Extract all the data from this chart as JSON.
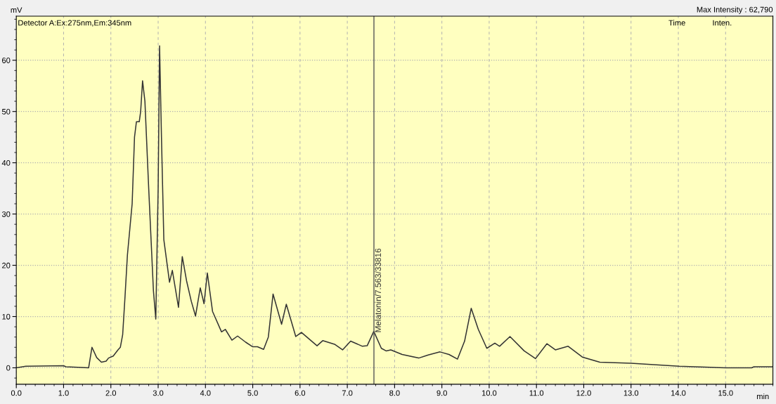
{
  "chart_data": {
    "type": "line",
    "title": "Max Intensity : 62,790",
    "xlabel": "min",
    "ylabel": "mV",
    "annotations": [
      "Detector A:Ex:275nm,Em:345nm",
      "Time",
      "Inten."
    ],
    "xlim": [
      0,
      16.0
    ],
    "ylim": [
      -3.2,
      68.6
    ],
    "xticks": [
      {
        "value": 0,
        "label": "0.0"
      },
      {
        "value": 1,
        "label": "1.0"
      },
      {
        "value": 2,
        "label": "2.0"
      },
      {
        "value": 3,
        "label": "3.0"
      },
      {
        "value": 4,
        "label": "4.0"
      },
      {
        "value": 5,
        "label": "5.0"
      },
      {
        "value": 6,
        "label": "6.0"
      },
      {
        "value": 7,
        "label": "7.0"
      },
      {
        "value": 8,
        "label": "8.0"
      },
      {
        "value": 9,
        "label": "9.0"
      },
      {
        "value": 10,
        "label": "10.0"
      },
      {
        "value": 11,
        "label": "11.0"
      },
      {
        "value": 12,
        "label": "12.0"
      },
      {
        "value": 13,
        "label": "13.0"
      },
      {
        "value": 14,
        "label": "14.0"
      },
      {
        "value": 15,
        "label": "15.0"
      }
    ],
    "yticks": [
      0,
      10,
      20,
      30,
      40,
      50,
      60
    ],
    "grid": true,
    "legend": false,
    "marker": "none",
    "line_style": "solid",
    "ref_lines": [
      {
        "axis": "x",
        "value": 7.563,
        "label": "Melatonin/7.563/33816",
        "color": "#555555"
      }
    ],
    "series": [
      {
        "color": "#333333",
        "x": [
          0.0,
          0.2,
          1.0,
          1.05,
          1.3,
          1.53,
          1.6,
          1.7,
          1.8,
          1.9,
          1.95,
          2.05,
          2.15,
          2.2,
          2.25,
          2.3,
          2.35,
          2.4,
          2.45,
          2.5,
          2.54,
          2.6,
          2.63,
          2.67,
          2.72,
          2.8,
          2.85,
          2.9,
          2.95,
          3.0,
          3.03,
          3.07,
          3.12,
          3.24,
          3.3,
          3.43,
          3.51,
          3.6,
          3.7,
          3.79,
          3.89,
          3.97,
          4.04,
          4.15,
          4.34,
          4.42,
          4.56,
          4.68,
          4.85,
          5.0,
          5.1,
          5.23,
          5.33,
          5.43,
          5.61,
          5.71,
          5.91,
          6.03,
          6.36,
          6.48,
          6.73,
          6.9,
          7.07,
          7.32,
          7.42,
          7.56,
          7.72,
          7.82,
          7.92,
          8.16,
          8.51,
          8.71,
          8.96,
          9.15,
          9.33,
          9.48,
          9.62,
          9.77,
          9.95,
          10.12,
          10.22,
          10.44,
          10.74,
          10.98,
          11.22,
          11.4,
          11.67,
          11.97,
          12.34,
          13.0,
          14.02,
          15.0,
          15.55,
          15.6,
          16.0
        ],
        "values": [
          0.0,
          0.3,
          0.4,
          0.2,
          0.1,
          0.0,
          4.0,
          2.0,
          1.1,
          1.3,
          1.9,
          2.3,
          3.5,
          4.0,
          6.5,
          14,
          22,
          27,
          32,
          45,
          48,
          48,
          50,
          56,
          52,
          35,
          25,
          15,
          9.5,
          35,
          62.8,
          45,
          25,
          16.7,
          19,
          11.8,
          21.7,
          17,
          13,
          10.1,
          15.6,
          12.5,
          18.5,
          11,
          7.0,
          7.5,
          5.4,
          6.2,
          5.0,
          4.1,
          4.1,
          3.6,
          6,
          14.4,
          8.5,
          12.4,
          6.1,
          6.9,
          4.3,
          5.3,
          4.6,
          3.5,
          5.2,
          4.2,
          4.3,
          7.1,
          3.8,
          3.3,
          3.5,
          2.6,
          1.9,
          2.5,
          3.1,
          2.6,
          1.7,
          5.2,
          11.6,
          7.5,
          3.8,
          4.8,
          4.2,
          6.1,
          3.3,
          1.8,
          4.7,
          3.5,
          4.2,
          2.1,
          1.1,
          0.9,
          0.3,
          0.0,
          0.0,
          0.2,
          0.2
        ]
      }
    ]
  }
}
